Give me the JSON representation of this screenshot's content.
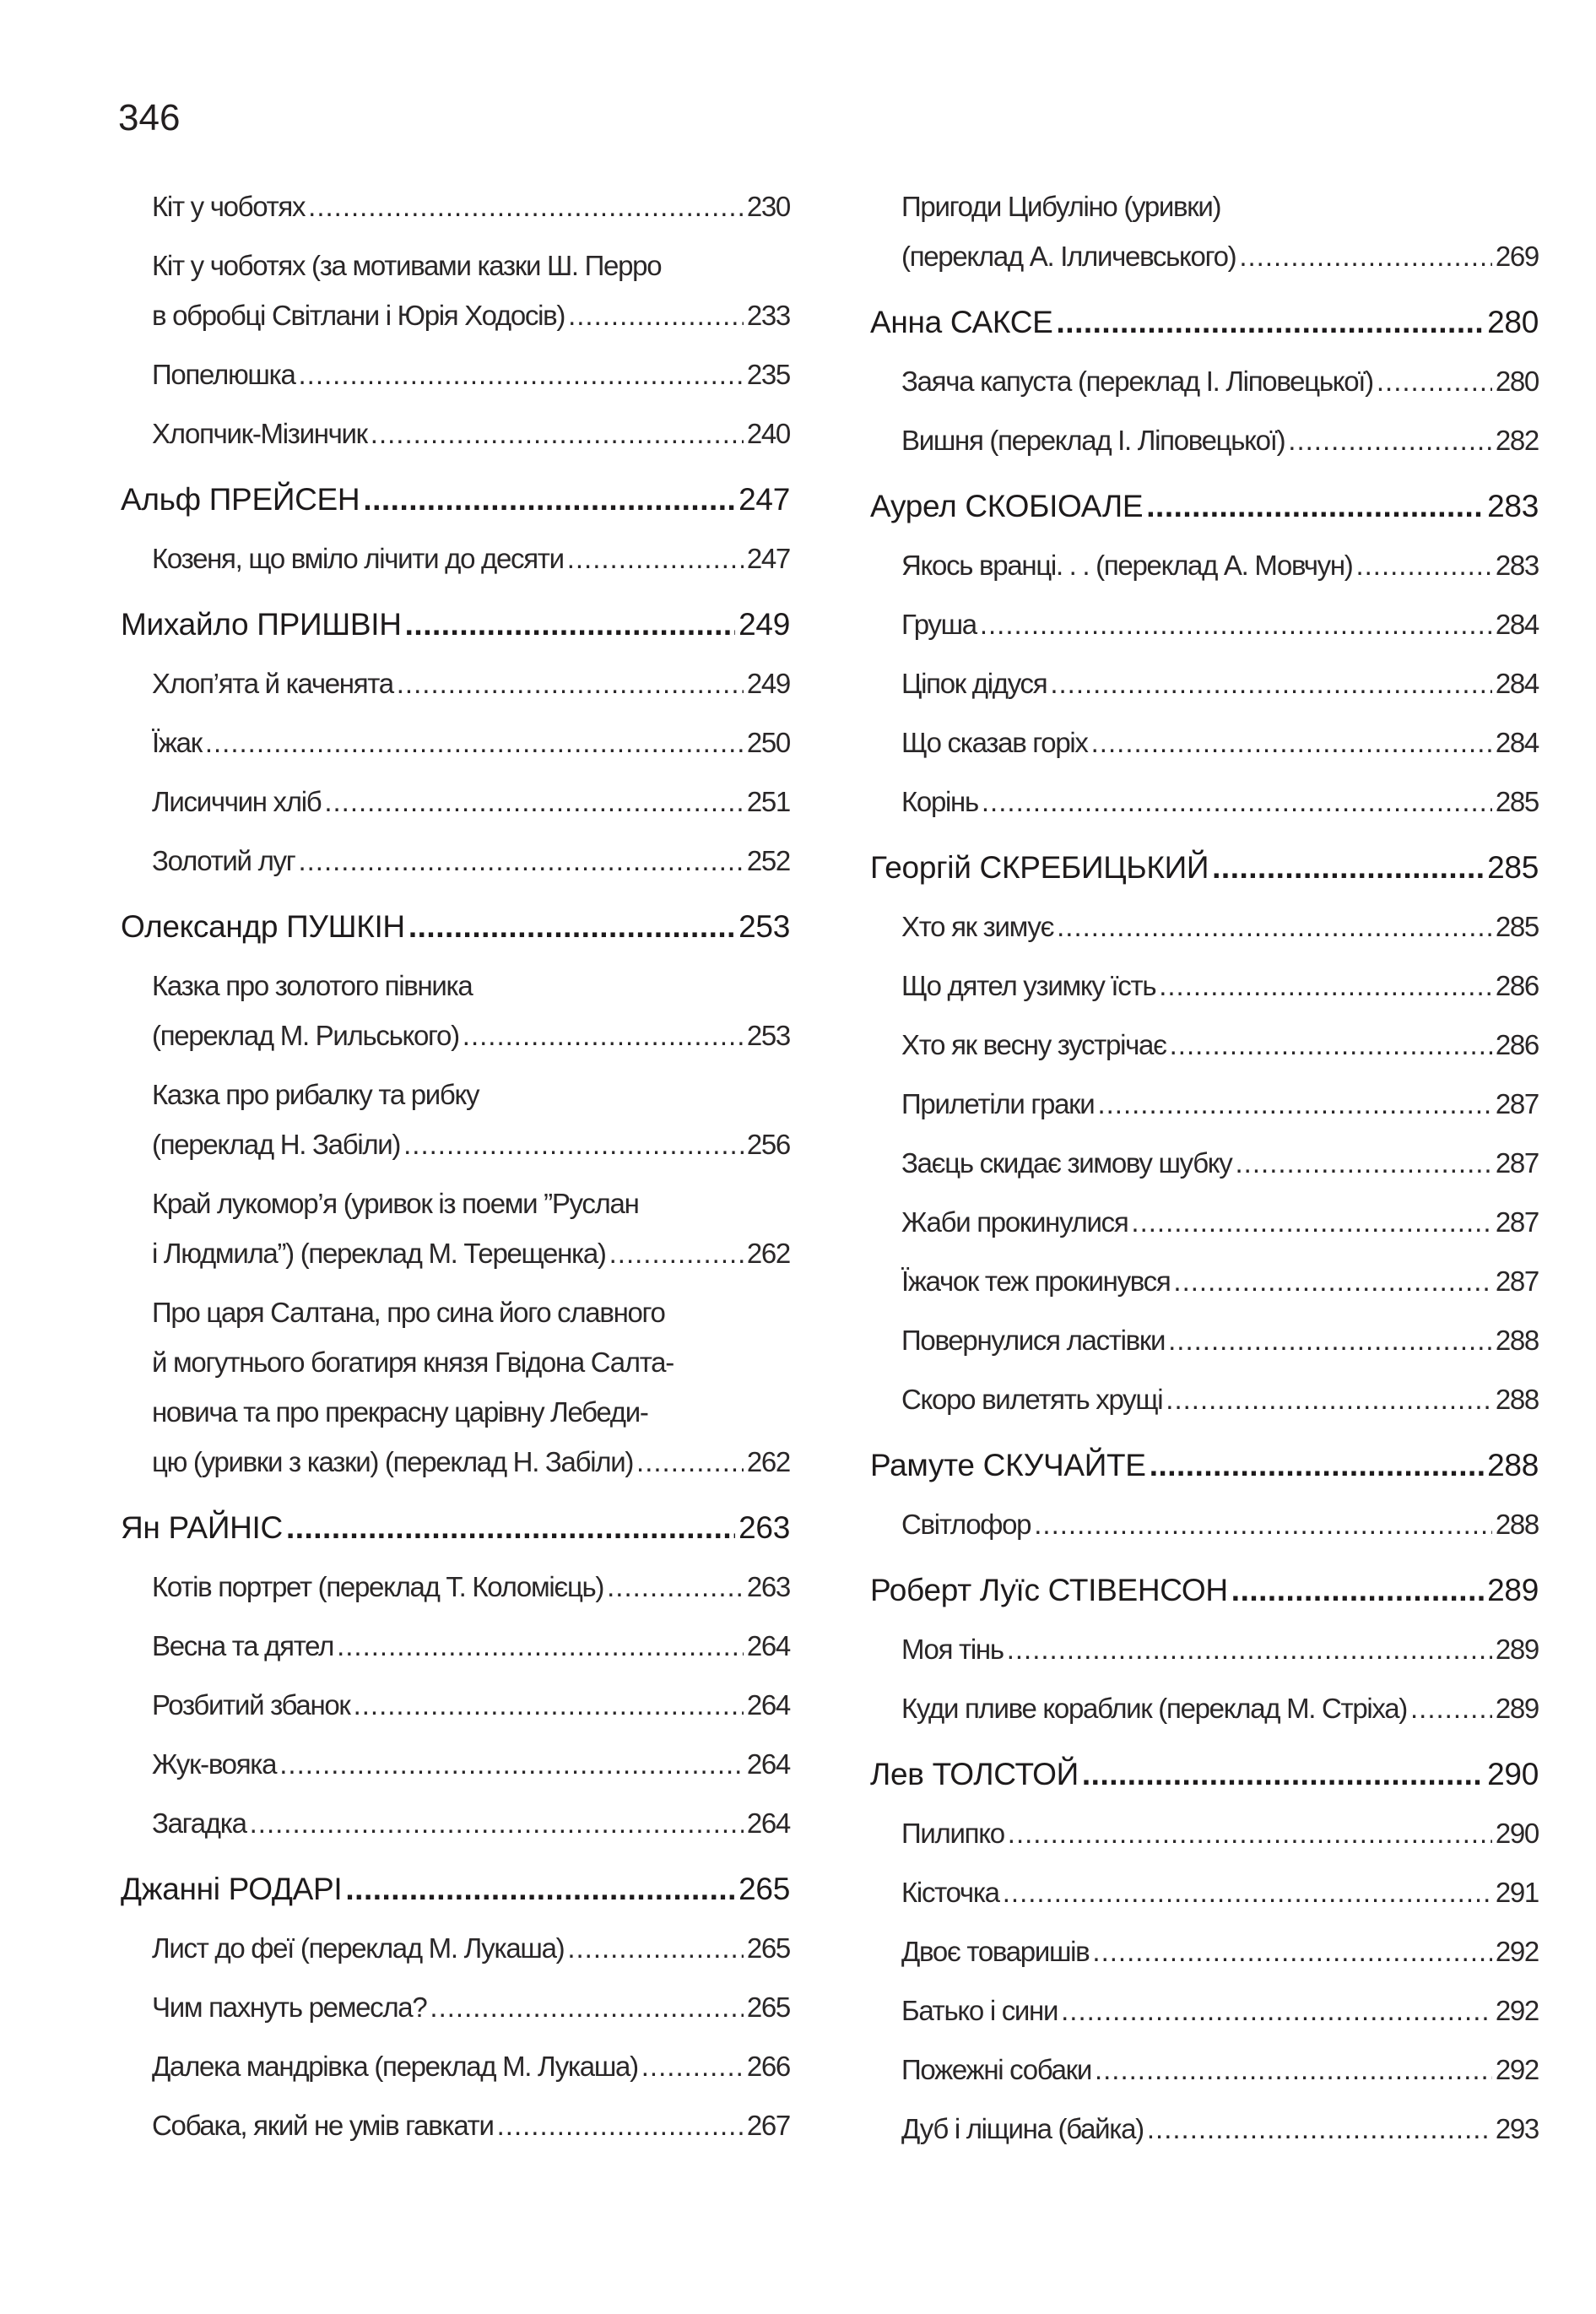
{
  "page_number": "346",
  "columns": [
    [
      {
        "type": "entry",
        "lines": [
          "Кіт у чоботях"
        ],
        "page": "230"
      },
      {
        "type": "entry",
        "lines": [
          "Кіт у чоботях (за мотивами казки Ш. Перро",
          "в обробці Світлани і Юрія Ходосів)"
        ],
        "page": "233"
      },
      {
        "type": "entry",
        "lines": [
          "Попелюшка"
        ],
        "page": "235"
      },
      {
        "type": "entry",
        "lines": [
          "Хлопчик-Мізинчик"
        ],
        "page": "240"
      },
      {
        "type": "heading",
        "lines": [
          "Альф ПРЕЙСЕН"
        ],
        "page": "247"
      },
      {
        "type": "entry",
        "lines": [
          "Козеня, що вміло лічити до десяти"
        ],
        "page": "247"
      },
      {
        "type": "heading",
        "lines": [
          "Михайло ПРИШВІН"
        ],
        "page": "249"
      },
      {
        "type": "entry",
        "lines": [
          "Хлоп’ята й каченята"
        ],
        "page": "249"
      },
      {
        "type": "entry",
        "lines": [
          "Їжак"
        ],
        "page": "250"
      },
      {
        "type": "entry",
        "lines": [
          "Лисиччин хліб"
        ],
        "page": "251"
      },
      {
        "type": "entry",
        "lines": [
          "Золотий луг"
        ],
        "page": "252"
      },
      {
        "type": "heading",
        "lines": [
          "Олександр ПУШКІН"
        ],
        "page": "253"
      },
      {
        "type": "entry",
        "lines": [
          "Казка про золотого півника",
          "(переклад М. Рильського)"
        ],
        "page": "253"
      },
      {
        "type": "entry",
        "lines": [
          "Казка про рибалку та рибку",
          "(переклад Н. Забіли)"
        ],
        "page": "256"
      },
      {
        "type": "entry",
        "lines": [
          "Край лукомор’я (уривок із поеми ”Руслан",
          "і Людмила”) (переклад М. Терещенка)"
        ],
        "page": "262"
      },
      {
        "type": "entry",
        "lines": [
          "Про царя Салтана, про сина його славного",
          "й могутнього богатиря князя Гвідона Салта-",
          "новича та про прекрасну царівну Лебеди-",
          "цю (уривки з казки) (переклад Н. Забіли)"
        ],
        "page": "262"
      },
      {
        "type": "heading",
        "lines": [
          "Ян РАЙНІС"
        ],
        "page": "263"
      },
      {
        "type": "entry",
        "lines": [
          "Котів портрет (переклад Т. Коломієць)"
        ],
        "page": "263"
      },
      {
        "type": "entry",
        "lines": [
          "Весна та дятел"
        ],
        "page": "264"
      },
      {
        "type": "entry",
        "lines": [
          "Розбитий збанок"
        ],
        "page": "264"
      },
      {
        "type": "entry",
        "lines": [
          "Жук-вояка"
        ],
        "page": "264"
      },
      {
        "type": "entry",
        "lines": [
          "Загадка"
        ],
        "page": "264"
      },
      {
        "type": "heading",
        "lines": [
          "Джанні РОДАРІ"
        ],
        "page": "265"
      },
      {
        "type": "entry",
        "lines": [
          "Лист до феї (переклад М. Лукаша)"
        ],
        "page": "265"
      },
      {
        "type": "entry",
        "lines": [
          "Чим пахнуть ремесла?"
        ],
        "page": "265"
      },
      {
        "type": "entry",
        "lines": [
          "Далека мандрівка (переклад М. Лукаша)"
        ],
        "page": "266"
      },
      {
        "type": "entry",
        "lines": [
          "Собака, який не умів гавкати"
        ],
        "page": "267"
      }
    ],
    [
      {
        "type": "entry",
        "lines": [
          "Пригоди Цибуліно (уривки)",
          "(переклад А. Ілличевського)"
        ],
        "page": "269"
      },
      {
        "type": "heading",
        "lines": [
          "Анна САКСЕ"
        ],
        "page": "280"
      },
      {
        "type": "entry",
        "lines": [
          "Заяча капуста (переклад І. Ліповецької)"
        ],
        "page": "280"
      },
      {
        "type": "entry",
        "lines": [
          "Вишня (переклад І. Ліповецької)"
        ],
        "page": "282"
      },
      {
        "type": "heading",
        "lines": [
          "Аурел СКОБІОАЛЕ"
        ],
        "page": "283"
      },
      {
        "type": "entry",
        "lines": [
          "Якось вранці. . . (переклад А. Мовчун)"
        ],
        "page": "283"
      },
      {
        "type": "entry",
        "lines": [
          "Груша"
        ],
        "page": "284"
      },
      {
        "type": "entry",
        "lines": [
          "Ціпок дідуся"
        ],
        "page": "284"
      },
      {
        "type": "entry",
        "lines": [
          "Що сказав горіх"
        ],
        "page": "284"
      },
      {
        "type": "entry",
        "lines": [
          "Корінь"
        ],
        "page": "285"
      },
      {
        "type": "heading",
        "lines": [
          "Георгій СКРЕБИЦЬКИЙ"
        ],
        "page": "285"
      },
      {
        "type": "entry",
        "lines": [
          "Хто як зимує"
        ],
        "page": "285"
      },
      {
        "type": "entry",
        "lines": [
          "Що дятел узимку їсть"
        ],
        "page": "286"
      },
      {
        "type": "entry",
        "lines": [
          "Хто як весну зустрічає"
        ],
        "page": "286"
      },
      {
        "type": "entry",
        "lines": [
          "Прилетіли граки"
        ],
        "page": "287"
      },
      {
        "type": "entry",
        "lines": [
          "Заєць скидає зимову шубку"
        ],
        "page": "287"
      },
      {
        "type": "entry",
        "lines": [
          "Жаби прокинулися"
        ],
        "page": "287"
      },
      {
        "type": "entry",
        "lines": [
          "Їжачок теж прокинувся"
        ],
        "page": "287"
      },
      {
        "type": "entry",
        "lines": [
          "Повернулися ластівки"
        ],
        "page": "288"
      },
      {
        "type": "entry",
        "lines": [
          "Скоро вилетять хрущі"
        ],
        "page": "288"
      },
      {
        "type": "heading",
        "lines": [
          "Рамуте СКУЧАЙТЕ"
        ],
        "page": "288"
      },
      {
        "type": "entry",
        "lines": [
          "Світлофор"
        ],
        "page": "288"
      },
      {
        "type": "heading",
        "lines": [
          "Роберт Луїс СТІВЕНСОН"
        ],
        "page": "289"
      },
      {
        "type": "entry",
        "lines": [
          "Моя тінь"
        ],
        "page": "289"
      },
      {
        "type": "entry",
        "lines": [
          "Куди пливе кораблик (переклад М. Стріха)"
        ],
        "page": "289"
      },
      {
        "type": "heading",
        "lines": [
          "Лев ТОЛСТОЙ"
        ],
        "page": "290"
      },
      {
        "type": "entry",
        "lines": [
          "Пилипко"
        ],
        "page": "290"
      },
      {
        "type": "entry",
        "lines": [
          "Кісточка"
        ],
        "page": "291"
      },
      {
        "type": "entry",
        "lines": [
          "Двоє товаришів"
        ],
        "page": "292"
      },
      {
        "type": "entry",
        "lines": [
          "Батько і сини"
        ],
        "page": "292"
      },
      {
        "type": "entry",
        "lines": [
          "Пожежні собаки"
        ],
        "page": "292"
      },
      {
        "type": "entry",
        "lines": [
          "Дуб і ліщина (байка)"
        ],
        "page": "293"
      }
    ]
  ]
}
